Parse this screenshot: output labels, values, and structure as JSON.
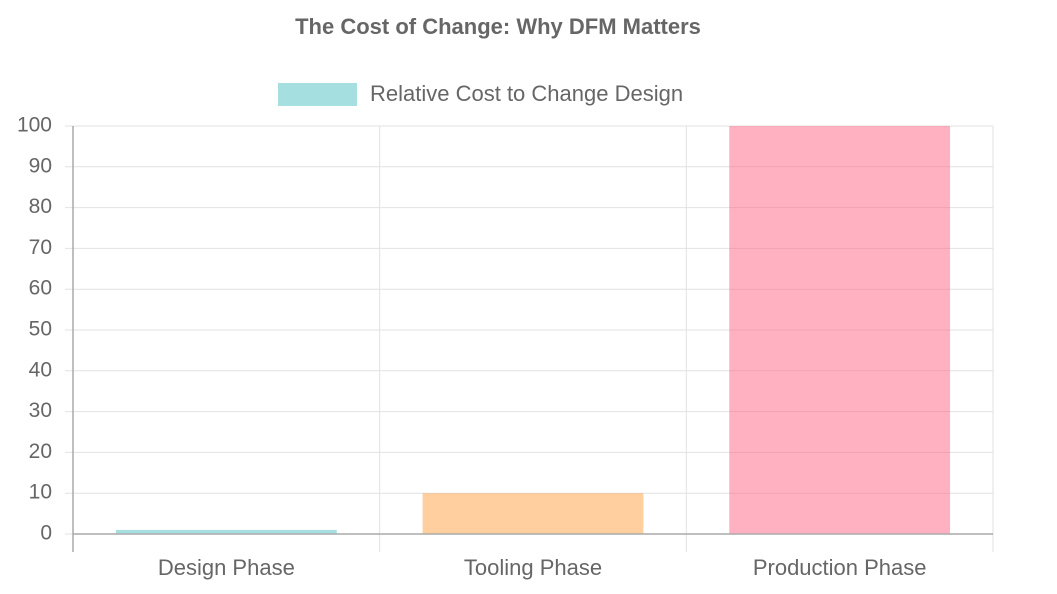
{
  "chart_data": {
    "type": "bar",
    "title": "The Cost of Change: Why DFM Matters",
    "categories": [
      "Design Phase",
      "Tooling Phase",
      "Production Phase"
    ],
    "series": [
      {
        "name": "Relative Cost to Change Design",
        "values": [
          1,
          10,
          100
        ],
        "colors": [
          "rgba(75,192,192,0.5)",
          "rgba(255,159,64,0.5)",
          "rgba(255,99,132,0.5)"
        ]
      }
    ],
    "ylim": [
      0,
      100
    ],
    "yticks": [
      0,
      10,
      20,
      30,
      40,
      50,
      60,
      70,
      80,
      90,
      100
    ],
    "grid": true,
    "legend": "top"
  }
}
